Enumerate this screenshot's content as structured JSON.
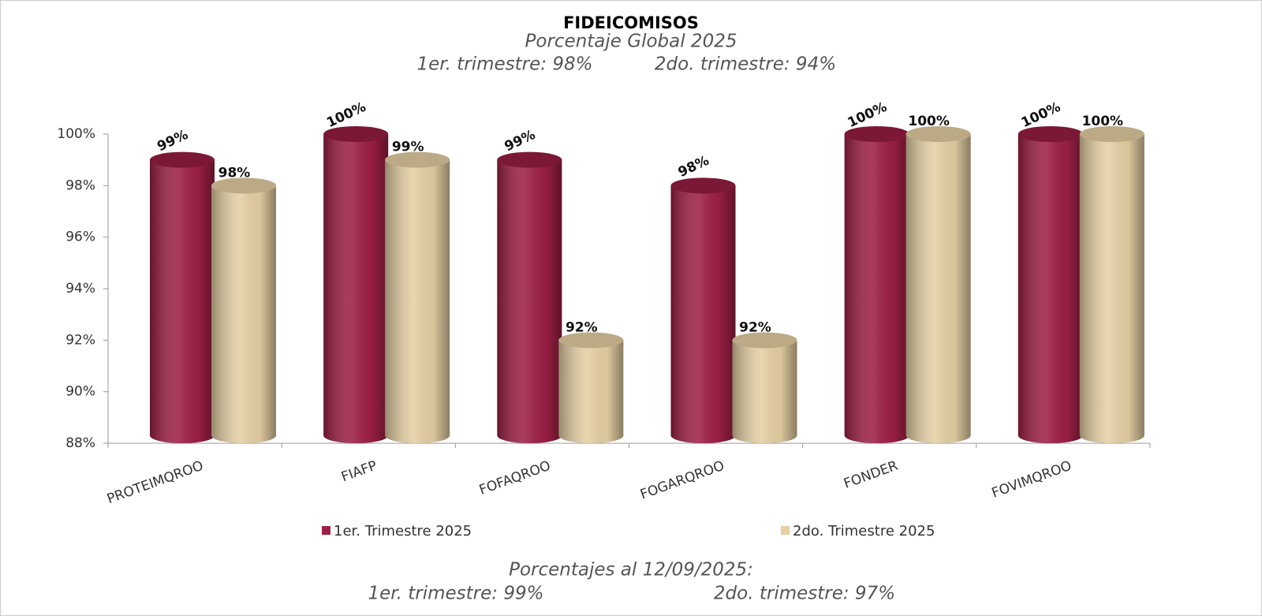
{
  "chart_data": {
    "type": "bar",
    "title": "FIDEICOMISOS",
    "subtitle": "Porcentaje Global  2025",
    "annotations": [
      "1er. trimestre: 98%",
      "2do. trimestre: 94%",
      "Porcentajes al 12/09/2025:",
      "1er. trimestre: 99%",
      "2do. trimestre: 97%"
    ],
    "categories": [
      "PROTEIMQROO",
      "FIAFP",
      "FOFAQROO",
      "FOGARQROO",
      "FONDER",
      "FOVIMQROO"
    ],
    "series": [
      {
        "name": "1er. Trimestre 2025",
        "color": "#9e1f45",
        "values": [
          99,
          100,
          99,
          98,
          100,
          100
        ],
        "value_labels": [
          "99%",
          "100%",
          "99%",
          "98%",
          "100%",
          "100%"
        ]
      },
      {
        "name": "2do. Trimestre 2025",
        "color": "#e6d0a4",
        "values": [
          98,
          99,
          92,
          92,
          100,
          100
        ],
        "value_labels": [
          "98%",
          "99%",
          "92%",
          "92%",
          "100%",
          "100%"
        ]
      }
    ],
    "ylim": [
      88,
      100
    ],
    "yticks": [
      {
        "value": 88,
        "label": "88%"
      },
      {
        "value": 90,
        "label": "90%"
      },
      {
        "value": 92,
        "label": "92%"
      },
      {
        "value": 94,
        "label": "94%"
      },
      {
        "value": 96,
        "label": "96%"
      },
      {
        "value": 98,
        "label": "98%"
      },
      {
        "value": 100,
        "label": "100%"
      }
    ],
    "grid": false,
    "legend": "bottom"
  }
}
